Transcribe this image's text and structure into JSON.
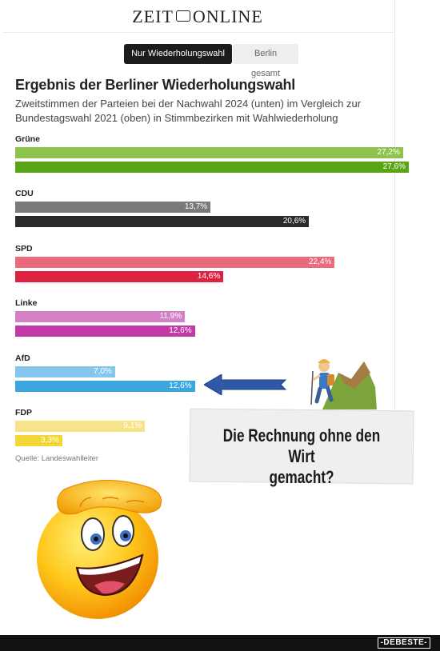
{
  "masthead": {
    "left": "ZEIT",
    "right": "ONLINE"
  },
  "toggles": {
    "active": "Nur Wiederholungswahl",
    "inactive": "Berlin gesamt"
  },
  "chart_data": {
    "type": "bar",
    "title": "Ergebnis der Berliner Wiederholungswahl",
    "subtitle": "Zweitstimmen der Parteien bei der Nachwahl 2024 (unten) im Vergleich zur Bundestagswahl 2021 (oben) in Stimmbezirken mit Wahlwiederholung",
    "value_max": 27.6,
    "categories": [
      "Grüne",
      "CDU",
      "SPD",
      "Linke",
      "AfD",
      "FDP"
    ],
    "series_order": [
      "2021 (oben)",
      "2024 (unten)"
    ],
    "bars": [
      {
        "party": "Grüne",
        "v2021": 27.2,
        "v2024": 27.6,
        "l2021": "27,2",
        "l2024": "27,6",
        "c2021": "#8ec34e",
        "c2024": "#5aa516"
      },
      {
        "party": "CDU",
        "v2021": 13.7,
        "v2024": 20.6,
        "l2021": "13,7",
        "l2024": "20,6",
        "c2021": "#7a7a7a",
        "c2024": "#2a2a2a"
      },
      {
        "party": "SPD",
        "v2021": 22.4,
        "v2024": 14.6,
        "l2021": "22,4",
        "l2024": "14,6",
        "c2021": "#ea6b7d",
        "c2024": "#de2342"
      },
      {
        "party": "Linke",
        "v2021": 11.9,
        "v2024": 12.6,
        "l2021": "11,9",
        "l2024": "12,6",
        "c2021": "#d57fc6",
        "c2024": "#c13aa6"
      },
      {
        "party": "AfD",
        "v2021": 7.0,
        "v2024": 12.6,
        "l2021": "7,0",
        "l2024": "12,6",
        "c2021": "#84c6ec",
        "c2024": "#3aa6dd"
      },
      {
        "party": "FDP",
        "v2021": 9.1,
        "v2024": 3.3,
        "l2021": "9,1",
        "l2024": "3,3",
        "c2021": "#f7e48a",
        "c2024": "#f2d636"
      }
    ],
    "value_suffix": "%",
    "source": "Quelle: Landeswahlleiter"
  },
  "caption": {
    "line1": "Die Rechnung ohne den Wirt",
    "line2": "gemacht?"
  },
  "watermark": "-DEBESTE-",
  "icons": {
    "arrow": "arrow-left-icon",
    "hiker": "hiker-icon",
    "smiley": "saluting-smiley-icon"
  }
}
